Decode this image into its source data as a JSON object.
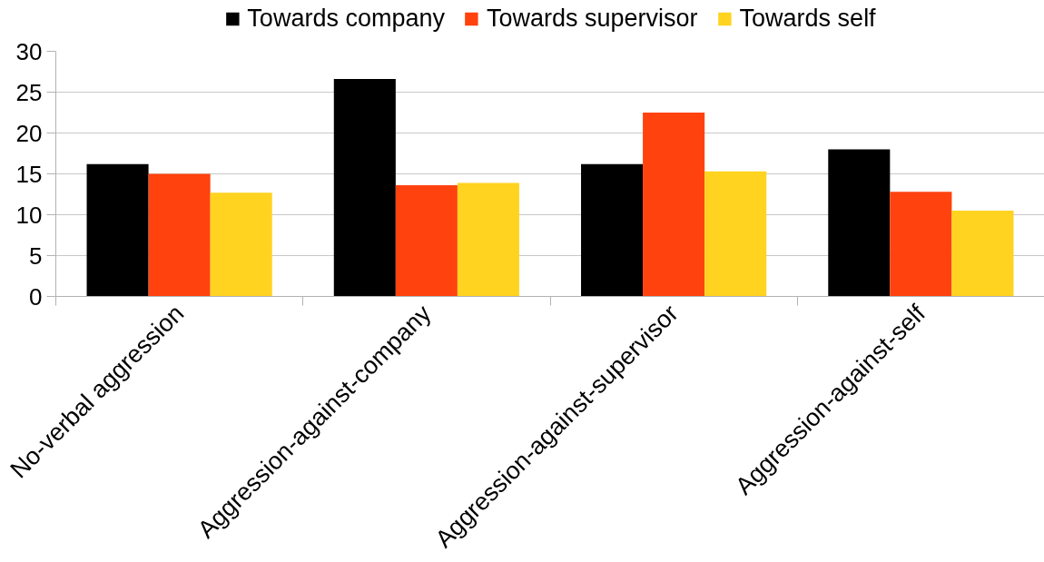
{
  "chart_data": {
    "type": "bar",
    "categories": [
      "No-verbal aggression",
      "Aggression-against-company",
      "Aggression-against-supervisor",
      "Aggression-against-self"
    ],
    "series": [
      {
        "name": "Towards company",
        "color": "#000000",
        "values": [
          16.2,
          26.6,
          16.2,
          18.0
        ]
      },
      {
        "name": "Towards supervisor",
        "color": "#ff420e",
        "values": [
          15.0,
          13.6,
          22.5,
          12.8
        ]
      },
      {
        "name": "Towards self",
        "color": "#ffd320",
        "values": [
          12.7,
          13.9,
          15.3,
          10.5
        ]
      }
    ],
    "ylim": [
      0,
      30
    ],
    "yticks": [
      0,
      5,
      10,
      15,
      20,
      25,
      30
    ],
    "grid": "y",
    "legend": "top"
  }
}
